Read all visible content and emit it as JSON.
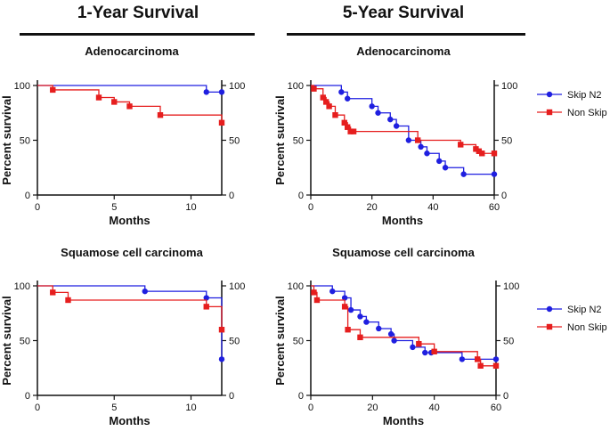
{
  "headings": {
    "left": "1-Year Survival",
    "right": "5-Year Survival"
  },
  "colors": {
    "skip": "#1f1fe0",
    "nonskip": "#e61e1e"
  },
  "chart_data": [
    {
      "id": "p1",
      "type": "line",
      "title": "Adenocarcinoma",
      "xlabel": "Months",
      "ylabel": "Percent survival",
      "xlim": [
        0,
        12
      ],
      "ylim": [
        0,
        100
      ],
      "xticks": [
        0,
        5,
        10
      ],
      "yticks": [
        0,
        50,
        100
      ],
      "series": [
        {
          "name": "Skip N2",
          "x": [
            0,
            11,
            12
          ],
          "y": [
            100,
            94,
            94
          ]
        },
        {
          "name": "Non Skip",
          "x": [
            0,
            1,
            4,
            5,
            6,
            8,
            12
          ],
          "y": [
            100,
            96,
            89,
            85,
            81,
            73,
            66
          ]
        }
      ]
    },
    {
      "id": "p2",
      "type": "line",
      "title": "Adenocarcinoma",
      "xlabel": "Months",
      "ylabel": "Percent survival",
      "xlim": [
        0,
        60
      ],
      "ylim": [
        0,
        100
      ],
      "xticks": [
        0,
        20,
        40,
        60
      ],
      "yticks": [
        0,
        50,
        100
      ],
      "series": [
        {
          "name": "Skip N2",
          "x": [
            0,
            10,
            12,
            20,
            22,
            26,
            28,
            32,
            36,
            38,
            42,
            44,
            50,
            60
          ],
          "y": [
            100,
            94,
            88,
            81,
            75,
            69,
            63,
            50,
            44,
            38,
            31,
            25,
            19,
            19
          ]
        },
        {
          "name": "Non Skip",
          "x": [
            0,
            1,
            4,
            5,
            6,
            8,
            11,
            12,
            13,
            14,
            35,
            49,
            54,
            55,
            56,
            60
          ],
          "y": [
            100,
            97,
            89,
            85,
            81,
            73,
            66,
            62,
            58,
            58,
            50,
            46,
            42,
            40,
            38,
            38
          ]
        }
      ]
    },
    {
      "id": "p3",
      "type": "line",
      "title": "Squamose cell carcinoma",
      "xlabel": "Months",
      "ylabel": "Percent survival",
      "xlim": [
        0,
        12
      ],
      "ylim": [
        0,
        100
      ],
      "xticks": [
        0,
        5,
        10
      ],
      "yticks": [
        0,
        50,
        100
      ],
      "series": [
        {
          "name": "Skip N2",
          "x": [
            0,
            7,
            11,
            12
          ],
          "y": [
            100,
            95,
            89,
            33
          ]
        },
        {
          "name": "Non Skip",
          "x": [
            0,
            1,
            2,
            11,
            12
          ],
          "y": [
            100,
            94,
            87,
            81,
            60
          ]
        }
      ]
    },
    {
      "id": "p4",
      "type": "line",
      "title": "Squamose cell carcinoma",
      "xlabel": "Months",
      "ylabel": "Percent survival",
      "xlim": [
        0,
        60
      ],
      "ylim": [
        0,
        100
      ],
      "xticks": [
        0,
        20,
        40,
        60
      ],
      "yticks": [
        0,
        50,
        100
      ],
      "series": [
        {
          "name": "Skip N2",
          "x": [
            0,
            7,
            11,
            13,
            16,
            18,
            22,
            26,
            27,
            33,
            37,
            39,
            49,
            60
          ],
          "y": [
            100,
            95,
            89,
            78,
            72,
            67,
            61,
            56,
            50,
            44,
            39,
            39,
            33,
            33
          ]
        },
        {
          "name": "Non Skip",
          "x": [
            0,
            1,
            2,
            11,
            12,
            16,
            35,
            40,
            54,
            55,
            60
          ],
          "y": [
            100,
            94,
            87,
            81,
            60,
            53,
            47,
            40,
            33,
            27,
            27
          ]
        }
      ]
    }
  ],
  "legend": {
    "top": [
      "Skip N2",
      "Non Skip"
    ],
    "bottom": [
      "Skip N2",
      "Non Skip"
    ]
  }
}
